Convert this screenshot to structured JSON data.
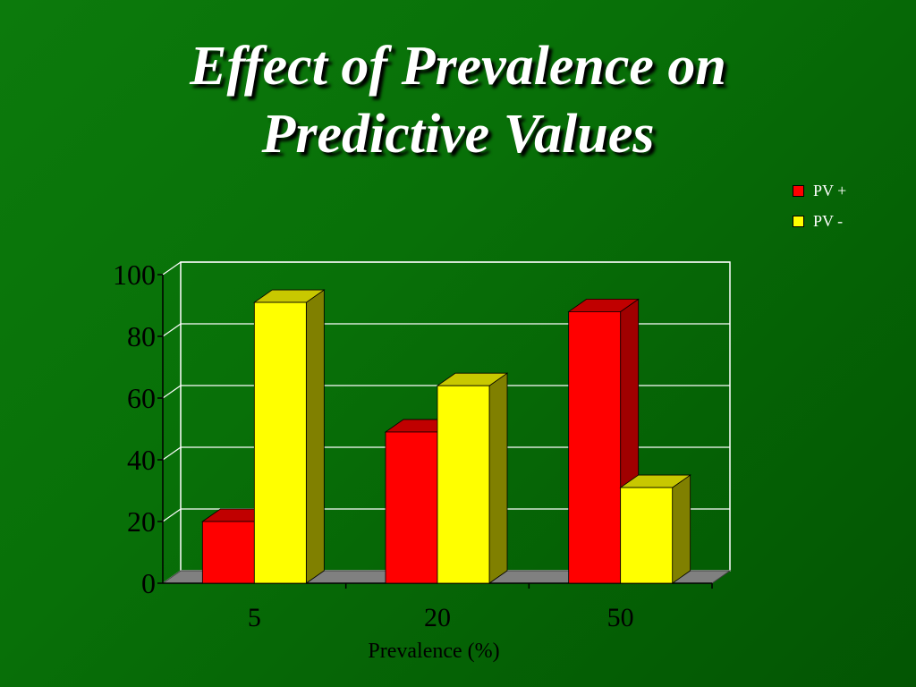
{
  "slide": {
    "title_line1": "Effect of Prevalence on",
    "title_line2": "Predictive Values"
  },
  "legend": [
    {
      "label": "PV +",
      "color": "#ff0000"
    },
    {
      "label": "PV -",
      "color": "#ffff00"
    }
  ],
  "chart_data": {
    "type": "bar",
    "categories": [
      "5",
      "20",
      "50"
    ],
    "series": [
      {
        "name": "PV +",
        "values": [
          20,
          49,
          88
        ],
        "color": "#ff0000",
        "top_color": "#c00000",
        "side_color": "#a00000"
      },
      {
        "name": "PV -",
        "values": [
          91,
          64,
          31
        ],
        "color": "#ffff00",
        "top_color": "#c8c800",
        "side_color": "#808000"
      }
    ],
    "title": "Effect of Prevalence on Predictive Values",
    "xlabel": "Prevalence (%)",
    "ylabel": "",
    "ylim": [
      0,
      100
    ],
    "yticks": [
      0,
      20,
      40,
      60,
      80,
      100
    ],
    "grid": true,
    "legend_position": "top-right",
    "style": "3d"
  }
}
